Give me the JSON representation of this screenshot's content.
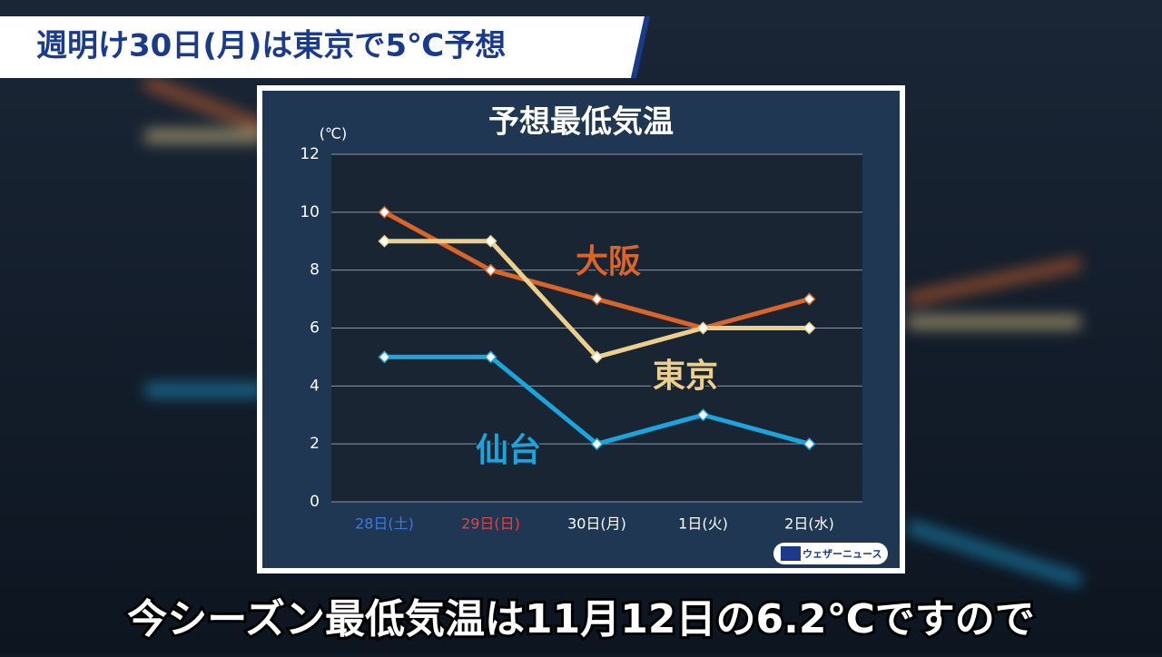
{
  "headline": "週明け30日(月)は東京で5℃予想",
  "caption": "今シーズン最低気温は11月12日の6.2℃ですので",
  "logo": "ウェザーニュース",
  "chart_data": {
    "type": "line",
    "title": "予想最低気温",
    "y_unit": "(℃)",
    "categories": [
      "28日(土)",
      "29日(日)",
      "30日(月)",
      "1日(火)",
      "2日(水)"
    ],
    "category_colors": [
      "#3b7be0",
      "#e0444a",
      "#ffffff",
      "#ffffff",
      "#ffffff"
    ],
    "series": [
      {
        "name": "大阪",
        "color": "#d9652a",
        "values": [
          10,
          8,
          7,
          6,
          7
        ]
      },
      {
        "name": "東京",
        "color": "#ead08c",
        "values": [
          9,
          9,
          5,
          6,
          6
        ]
      },
      {
        "name": "仙台",
        "color": "#1ba5dc",
        "values": [
          5,
          5,
          2,
          3,
          2
        ]
      }
    ],
    "ylim": [
      0,
      12
    ],
    "yticks": [
      0,
      2,
      4,
      6,
      8,
      10,
      12
    ],
    "grid": true
  }
}
